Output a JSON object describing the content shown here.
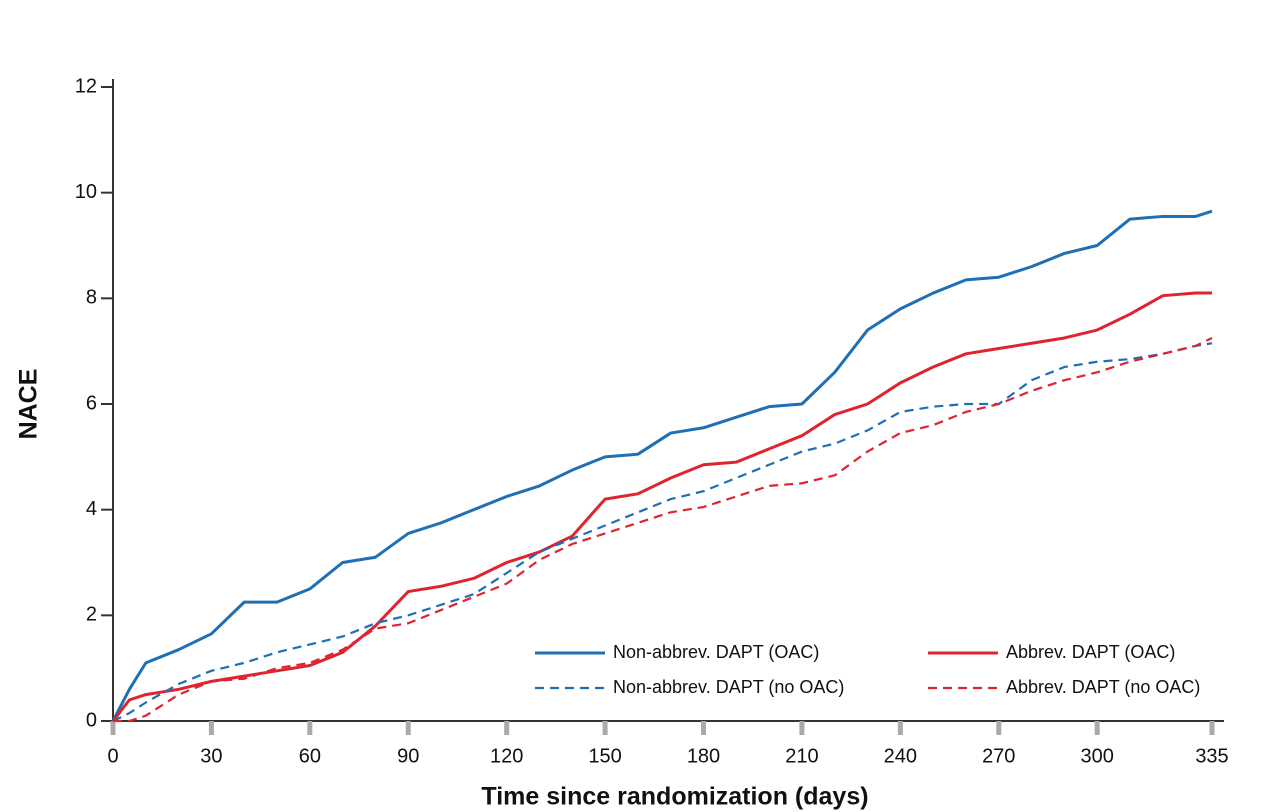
{
  "chart_data": {
    "type": "line",
    "xlabel": "Time since randomization (days)",
    "ylabel": "NACE",
    "x": [
      0,
      5,
      10,
      20,
      30,
      40,
      50,
      60,
      70,
      80,
      90,
      100,
      110,
      120,
      130,
      140,
      150,
      160,
      170,
      180,
      190,
      200,
      210,
      220,
      230,
      240,
      250,
      260,
      270,
      280,
      290,
      300,
      310,
      320,
      330,
      335
    ],
    "series": [
      {
        "name": "Non-abbrev. DAPT (OAC)",
        "color": "#1f6fb5",
        "dash": false,
        "values": [
          0,
          0.6,
          1.1,
          1.35,
          1.65,
          2.25,
          2.25,
          2.5,
          3.0,
          3.1,
          3.55,
          3.75,
          4.0,
          4.25,
          4.45,
          4.75,
          5.0,
          5.05,
          5.45,
          5.55,
          5.75,
          5.95,
          6.0,
          6.6,
          7.4,
          7.8,
          8.1,
          8.35,
          8.4,
          8.6,
          8.85,
          9.0,
          9.5,
          9.55,
          9.55,
          9.65
        ]
      },
      {
        "name": "Abbrev. DAPT (OAC)",
        "color": "#e0242f",
        "dash": false,
        "values": [
          0,
          0.4,
          0.5,
          0.6,
          0.75,
          0.85,
          0.95,
          1.05,
          1.3,
          1.8,
          2.45,
          2.55,
          2.7,
          3.0,
          3.2,
          3.5,
          4.2,
          4.3,
          4.6,
          4.85,
          4.9,
          5.15,
          5.4,
          5.8,
          6.0,
          6.4,
          6.7,
          6.95,
          7.05,
          7.15,
          7.25,
          7.4,
          7.7,
          8.05,
          8.1,
          8.1
        ]
      },
      {
        "name": "Non-abbrev. DAPT (no OAC)",
        "color": "#1f6fb5",
        "dash": true,
        "values": [
          0,
          0.15,
          0.35,
          0.7,
          0.95,
          1.1,
          1.3,
          1.45,
          1.6,
          1.85,
          2.0,
          2.2,
          2.4,
          2.8,
          3.2,
          3.45,
          3.7,
          3.95,
          4.2,
          4.35,
          4.6,
          4.85,
          5.1,
          5.25,
          5.5,
          5.85,
          5.95,
          6.0,
          6.0,
          6.45,
          6.7,
          6.8,
          6.85,
          6.95,
          7.1,
          7.15
        ]
      },
      {
        "name": "Abbrev. DAPT (no OAC)",
        "color": "#e0242f",
        "dash": true,
        "values": [
          0,
          0.0,
          0.1,
          0.5,
          0.75,
          0.8,
          1.0,
          1.1,
          1.35,
          1.75,
          1.85,
          2.1,
          2.35,
          2.6,
          3.05,
          3.35,
          3.55,
          3.75,
          3.95,
          4.05,
          4.25,
          4.45,
          4.5,
          4.65,
          5.1,
          5.45,
          5.6,
          5.85,
          6.0,
          6.25,
          6.45,
          6.6,
          6.8,
          6.95,
          7.1,
          7.25
        ]
      }
    ],
    "xlim": [
      0,
      335
    ],
    "xticks": [
      0,
      30,
      60,
      90,
      120,
      150,
      180,
      210,
      240,
      270,
      300,
      335
    ],
    "ylim": [
      0,
      12
    ],
    "yticks": [
      0,
      2,
      4,
      6,
      8,
      10,
      12
    ],
    "legend": "lower right",
    "grid": false
  }
}
